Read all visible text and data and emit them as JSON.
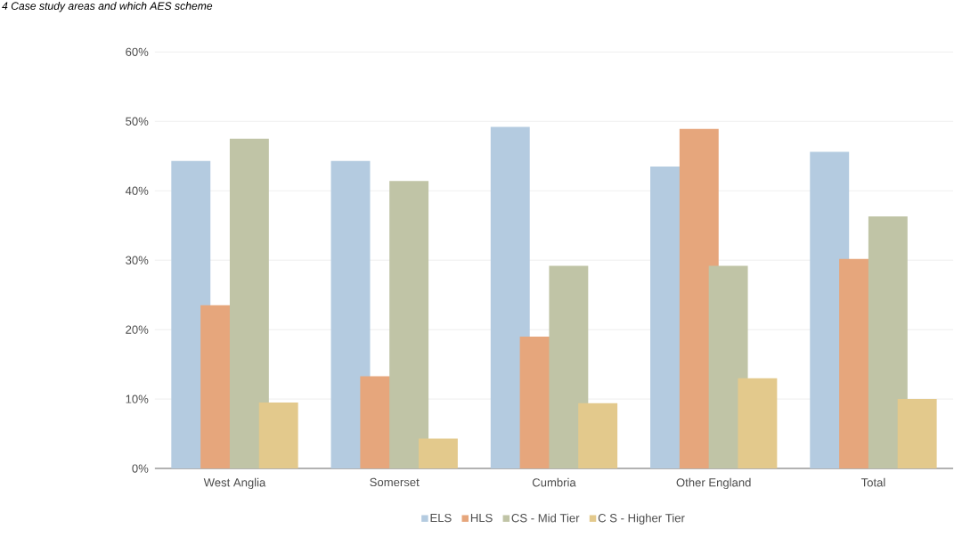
{
  "chart_data": {
    "type": "bar",
    "title": "4 Case study areas and which AES scheme",
    "categories": [
      "West  Anglia",
      "Somerset",
      "Cumbria",
      "Other  England",
      "Total"
    ],
    "series": [
      {
        "name": "ELS",
        "color": "#b4cbe0",
        "values": [
          44.3,
          44.3,
          49.2,
          43.5,
          45.6
        ]
      },
      {
        "name": "HLS",
        "color": "#e6a67c",
        "values": [
          23.5,
          13.3,
          19.0,
          48.9,
          30.2
        ]
      },
      {
        "name": "CS - Mid Tier",
        "color": "#c0c4a6",
        "values": [
          47.5,
          41.4,
          29.2,
          29.2,
          36.3
        ]
      },
      {
        "name": "C S - Higher Tier",
        "color": "#e3c98c",
        "values": [
          9.5,
          4.3,
          9.4,
          13.0,
          10.0
        ]
      }
    ],
    "ylim": [
      0,
      60
    ],
    "yticks": [
      {
        "value": 0,
        "label": "0%"
      },
      {
        "value": 10,
        "label": "10%"
      },
      {
        "value": 20,
        "label": "20%"
      },
      {
        "value": 30,
        "label": "30%"
      },
      {
        "value": 40,
        "label": "40%"
      },
      {
        "value": 50,
        "label": "50%"
      },
      {
        "value": 60,
        "label": "60%"
      }
    ],
    "grid": "y",
    "legend": "bottom"
  }
}
